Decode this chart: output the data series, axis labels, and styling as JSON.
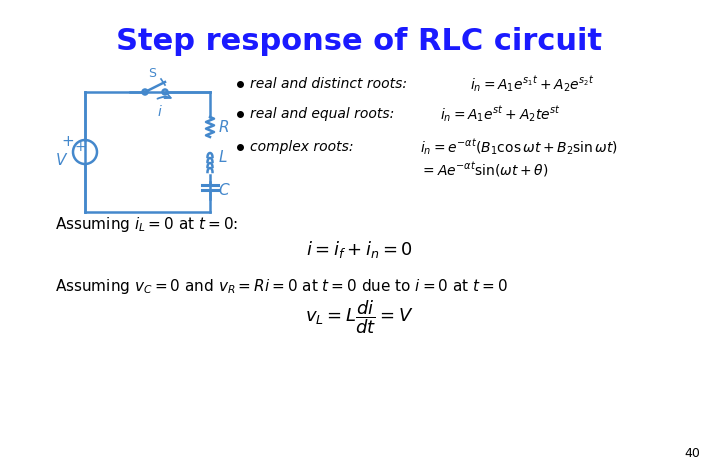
{
  "title": "Step response of RLC circuit",
  "title_color": "#1a1aff",
  "bg_color": "#ffffff",
  "text_color": "#000000",
  "circuit_color": "#4488cc",
  "page_number": "40",
  "bullet1_label": "real and distinct roots:",
  "bullet1_eq": "$i_n = A_1 e^{s_1 t} + A_2 e^{s_2 t}$",
  "bullet2_label": "real and equal roots:",
  "bullet2_eq": "$i_n = A_1 e^{st} + A_2 t e^{st}$",
  "bullet3_label": "complex roots:",
  "bullet3_eq": "$i_n = e^{-\\alpha t}(B_1 \\cos \\omega t + B_2 \\sin \\omega t)$",
  "bullet3_eq2": "$= A e^{-\\alpha t} \\sin(\\omega t + \\theta)$",
  "assume1": "Assuming $i_L = 0$ at $t = 0$:",
  "eq1": "$i = i_f + i_n = 0$",
  "assume2": "Assuming $v_C = 0$ and $v_R = Ri = 0$ at $t = 0$ due to $i = 0$ at $t = 0$",
  "eq2": "$v_L = L\\dfrac{di}{dt} = V$"
}
